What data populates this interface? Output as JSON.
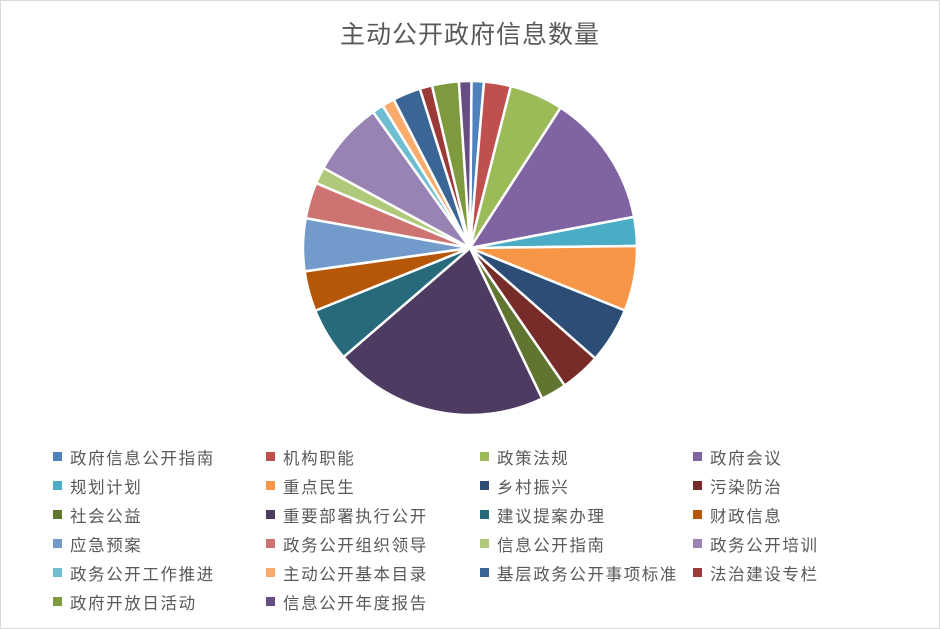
{
  "chart_data": {
    "type": "pie",
    "title": "主动公开政府信息数量",
    "unit_note": "",
    "legend_position": "bottom",
    "slices": [
      {
        "label": "政府信息公开指南",
        "value": 1.2,
        "color": "#4F81BD"
      },
      {
        "label": "机构职能",
        "value": 2.6,
        "color": "#C0504D"
      },
      {
        "label": "政策法规",
        "value": 5.2,
        "color": "#9BBB59"
      },
      {
        "label": "政府会议",
        "value": 12.9,
        "color": "#8064A2"
      },
      {
        "label": "规划计划",
        "value": 2.8,
        "color": "#4BACC6"
      },
      {
        "label": "重点民生",
        "value": 6.3,
        "color": "#F79646"
      },
      {
        "label": "乡村振兴",
        "value": 5.4,
        "color": "#2C4D75"
      },
      {
        "label": "污染防治",
        "value": 3.9,
        "color": "#772C2A"
      },
      {
        "label": "社会公益",
        "value": 2.5,
        "color": "#5F7530"
      },
      {
        "label": "重要部署执行公开",
        "value": 20.8,
        "color": "#4D3B62"
      },
      {
        "label": "建议提案办理",
        "value": 5.2,
        "color": "#276A7C"
      },
      {
        "label": "财政信息",
        "value": 3.9,
        "color": "#B65708"
      },
      {
        "label": "应急预案",
        "value": 5.1,
        "color": "#729ACA"
      },
      {
        "label": "政务公开组织领导",
        "value": 3.5,
        "color": "#CD7371"
      },
      {
        "label": "信息公开指南",
        "value": 1.6,
        "color": "#AFC97A"
      },
      {
        "label": "政务公开培训",
        "value": 7.2,
        "color": "#9983B5"
      },
      {
        "label": "政务公开工作推进",
        "value": 1.1,
        "color": "#6FBDD1"
      },
      {
        "label": "主动公开基本目录",
        "value": 1.2,
        "color": "#F9AB6B"
      },
      {
        "label": "基层政务公开事项标准",
        "value": 2.7,
        "color": "#3A6595"
      },
      {
        "label": "法治建设专栏",
        "value": 1.2,
        "color": "#9C3A38"
      },
      {
        "label": "政府开放日活动",
        "value": 2.6,
        "color": "#7D9A3F"
      },
      {
        "label": "信息公开年度报告",
        "value": 1.2,
        "color": "#664E83"
      }
    ]
  }
}
